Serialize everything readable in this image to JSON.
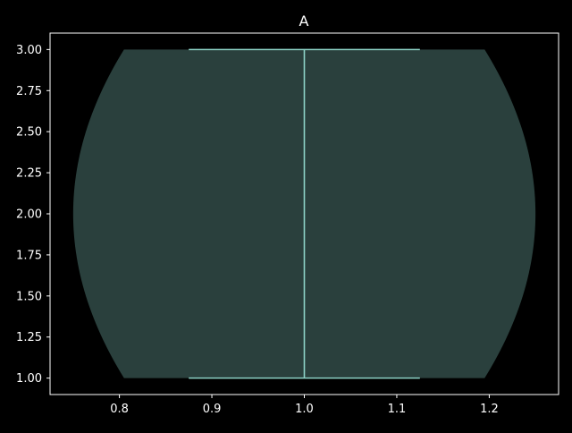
{
  "chart_data": {
    "type": "violin",
    "title": "A",
    "xlabel": "",
    "ylabel": "",
    "xlim": [
      0.725,
      1.275
    ],
    "ylim": [
      0.9,
      3.1
    ],
    "x_ticks": [
      0.8,
      0.9,
      1.0,
      1.1,
      1.2
    ],
    "x_tick_labels": [
      "0.8",
      "0.9",
      "1.0",
      "1.1",
      "1.2"
    ],
    "y_ticks": [
      1.0,
      1.25,
      1.5,
      1.75,
      2.0,
      2.25,
      2.5,
      2.75,
      3.0
    ],
    "y_tick_labels": [
      "1.00",
      "1.25",
      "1.50",
      "1.75",
      "2.00",
      "2.25",
      "2.50",
      "2.75",
      "3.00"
    ],
    "grid": false,
    "violin": {
      "position": 1.0,
      "min": 1.0,
      "max": 3.0,
      "max_half_width": 0.25,
      "half_width_at_extremes": 0.195,
      "cap_half_width": 0.125
    },
    "colors": {
      "background": "#000000",
      "axes": "#ffffff",
      "text": "#ffffff",
      "violin_fill": "#2a403d",
      "violin_lines": "#8dd3c7"
    }
  }
}
